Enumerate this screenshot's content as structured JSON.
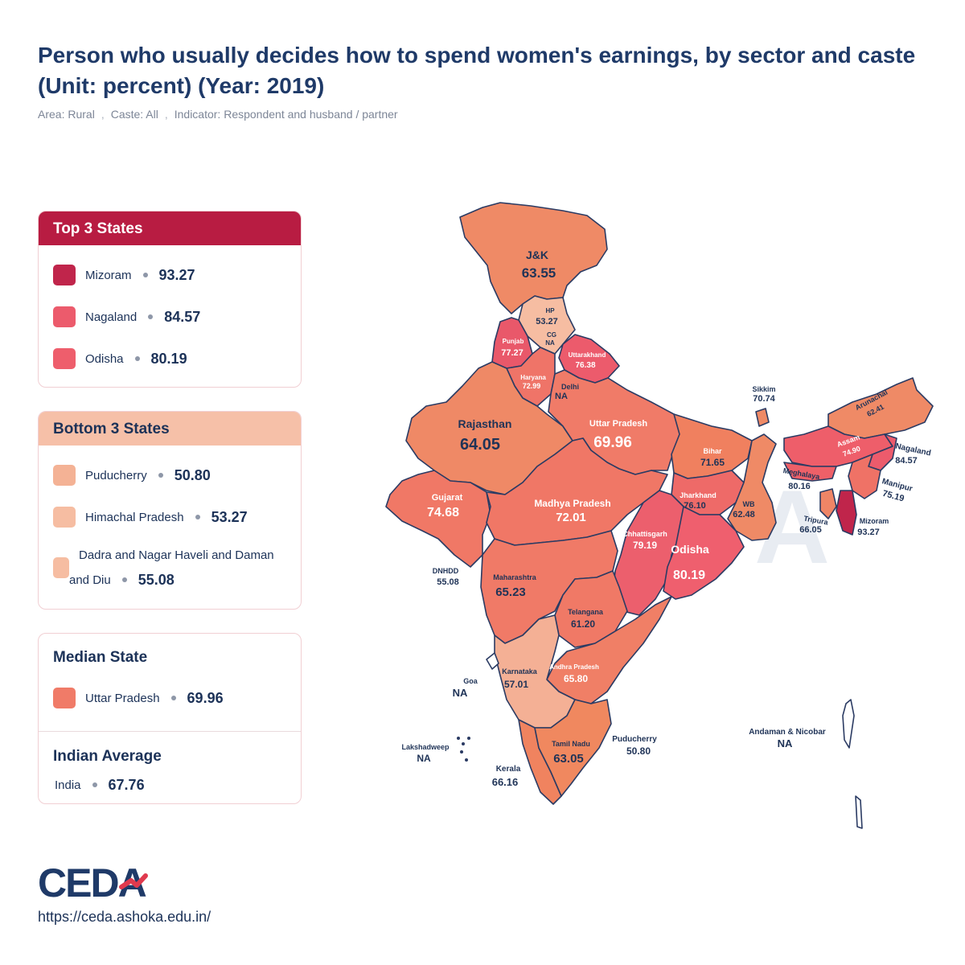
{
  "title": "Person who usually decides how to spend women's earnings, by sector and caste (Unit: percent) (Year: 2019)",
  "filters": {
    "area": "Area: Rural",
    "caste": "Caste: All",
    "indicator": "Indicator: Respondent and husband / partner",
    "separator": ","
  },
  "top3": {
    "heading": "Top 3 States",
    "items": [
      {
        "name": "Mizoram",
        "value": "93.27",
        "color": "#c0254b"
      },
      {
        "name": "Nagaland",
        "value": "84.57",
        "color": "#ec5b6c"
      },
      {
        "name": "Odisha",
        "value": "80.19",
        "color": "#ee5e6c"
      }
    ]
  },
  "bottom3": {
    "heading": "Bottom 3 States",
    "items": [
      {
        "name": "Puducherry",
        "value": "50.80",
        "color": "#f4b295"
      },
      {
        "name": "Himachal Pradesh",
        "value": "53.27",
        "color": "#f6bda2"
      },
      {
        "name": "Dadra and Nagar Haveli and Daman",
        "name2": "and Diu",
        "value": "55.08",
        "color": "#f6bda2"
      }
    ]
  },
  "median": {
    "heading": "Median State",
    "name": "Uttar Pradesh",
    "value": "69.96",
    "color": "#f07b68"
  },
  "average": {
    "heading": "Indian Average",
    "name": "India",
    "value": "67.76"
  },
  "logo_text": "CEDA",
  "url": "https://ceda.ashoka.edu.in/",
  "map_labels": {
    "jk": {
      "name": "J&K",
      "value": "63.55"
    },
    "hp": {
      "name": "HP",
      "value": "53.27"
    },
    "cg": {
      "name": "CG",
      "value": "NA"
    },
    "punjab": {
      "name": "Punjab",
      "value": "77.27"
    },
    "uttarakhand": {
      "name": "Uttarakhand",
      "value": "76.38"
    },
    "haryana": {
      "name": "Haryana",
      "value": "72.99"
    },
    "delhi": {
      "name": "Delhi",
      "value": "NA"
    },
    "rajasthan": {
      "name": "Rajasthan",
      "value": "64.05"
    },
    "up": {
      "name": "Uttar Pradesh",
      "value": "69.96"
    },
    "bihar": {
      "name": "Bihar",
      "value": "71.65"
    },
    "sikkim": {
      "name": "Sikkim",
      "value": "70.74"
    },
    "arunachal": {
      "name": "Arunachal",
      "value": "62.41"
    },
    "assam": {
      "name": "Assam",
      "value": "74.90"
    },
    "nagaland": {
      "name": "Nagaland",
      "value": "84.57"
    },
    "meghalaya": {
      "name": "Meghalaya",
      "value": "80.16"
    },
    "manipur": {
      "name": "Manipur",
      "value": "75.19"
    },
    "tripura": {
      "name": "Tripura",
      "value": "66.05"
    },
    "mizoram": {
      "name": "Mizoram",
      "value": "93.27"
    },
    "gujarat": {
      "name": "Gujarat",
      "value": "74.68"
    },
    "mp": {
      "name": "Madhya Pradesh",
      "value": "72.01"
    },
    "jharkhand": {
      "name": "Jharkhand",
      "value": "76.10"
    },
    "wb": {
      "name": "WB",
      "value": "62.48"
    },
    "chhattisgarh": {
      "name": "Chhattisgarh",
      "value": "79.19"
    },
    "odisha": {
      "name": "Odisha",
      "value": "80.19"
    },
    "dnhdd": {
      "name": "DNHDD",
      "value": "55.08"
    },
    "maharashtra": {
      "name": "Maharashtra",
      "value": "65.23"
    },
    "telangana": {
      "name": "Telangana",
      "value": "61.20"
    },
    "goa": {
      "name": "Goa",
      "value": "NA"
    },
    "karnataka": {
      "name": "Karnataka",
      "value": "57.01"
    },
    "ap": {
      "name": "Andhra Pradesh",
      "value": "65.80"
    },
    "lakshadweep": {
      "name": "Lakshadweep",
      "value": "NA"
    },
    "tamilnadu": {
      "name": "Tamil Nadu",
      "value": "63.05"
    },
    "puducherry": {
      "name": "Puducherry",
      "value": "50.80"
    },
    "kerala": {
      "name": "Kerala",
      "value": "66.16"
    },
    "andaman": {
      "name": "Andaman & Nicobar",
      "value": "NA"
    }
  }
}
